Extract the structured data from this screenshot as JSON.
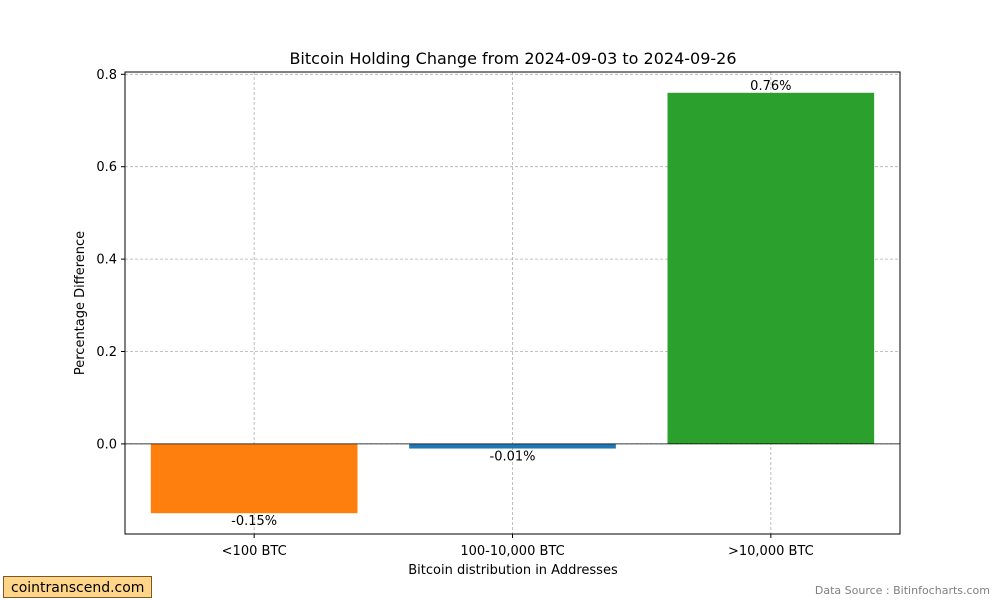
{
  "chart_data": {
    "type": "bar",
    "title": "Bitcoin Holding Change from 2024-09-03 to 2024-09-26",
    "xlabel": "Bitcoin distribution in Addresses",
    "ylabel": "Percentage Difference",
    "categories": [
      "<100 BTC",
      "100-10,000 BTC",
      ">10,000 BTC"
    ],
    "values": [
      -0.15,
      -0.01,
      0.76
    ],
    "value_labels": [
      "-0.15%",
      "-0.01%",
      "0.76%"
    ],
    "colors": [
      "#ff7f0e",
      "#1f77b4",
      "#2ca02c"
    ],
    "ylim": [
      -0.195,
      0.805
    ],
    "yticks": [
      0.0,
      0.2,
      0.4,
      0.6,
      0.8
    ],
    "ytick_labels": [
      "0.0",
      "0.2",
      "0.4",
      "0.6",
      "0.8"
    ],
    "grid": true,
    "zero_line": true
  },
  "watermark": "cointranscend.com",
  "source": "Data Source : Bitinfocharts.com"
}
